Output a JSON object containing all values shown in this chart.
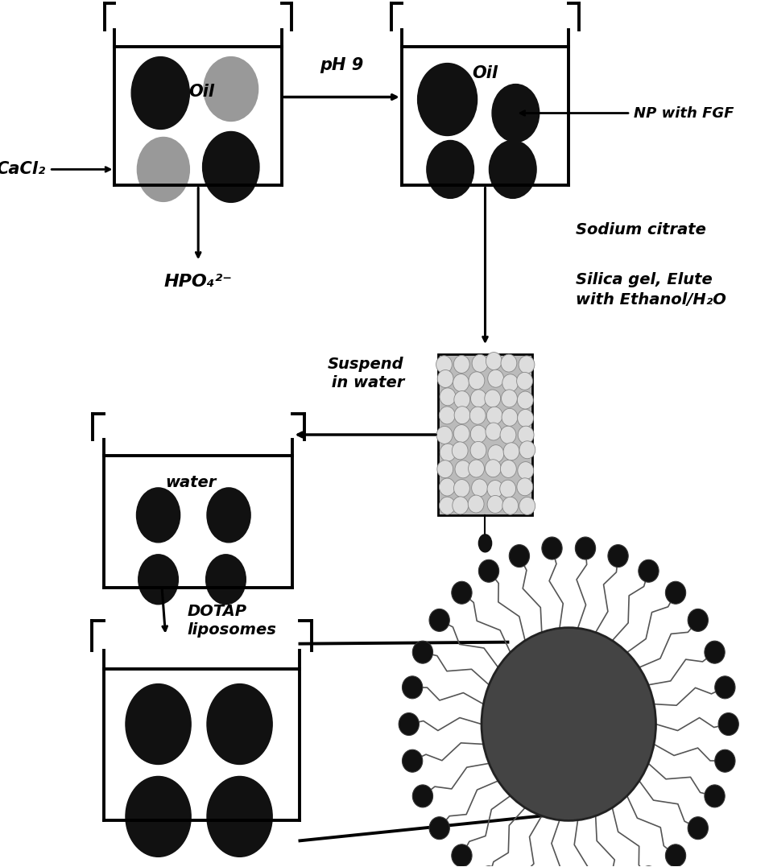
{
  "bg_color": "#ffffff",
  "line_color": "#000000",
  "dark_circle_color": "#111111",
  "gray_circle_color": "#999999",
  "label_oil1": "Oil",
  "label_oil2": "Oil",
  "label_water": "water",
  "label_cacl2": "CaCl₂",
  "label_hpo4": "HPO₄²⁻",
  "label_ph9": "pH 9",
  "label_np": "NP with FGF",
  "label_sodium": "Sodium citrate",
  "label_silica": "Silica gel, Elute\nwith Ethanol/H₂O",
  "label_suspend": "Suspend\n in water",
  "label_dotap": "DOTAP\nliposomes"
}
